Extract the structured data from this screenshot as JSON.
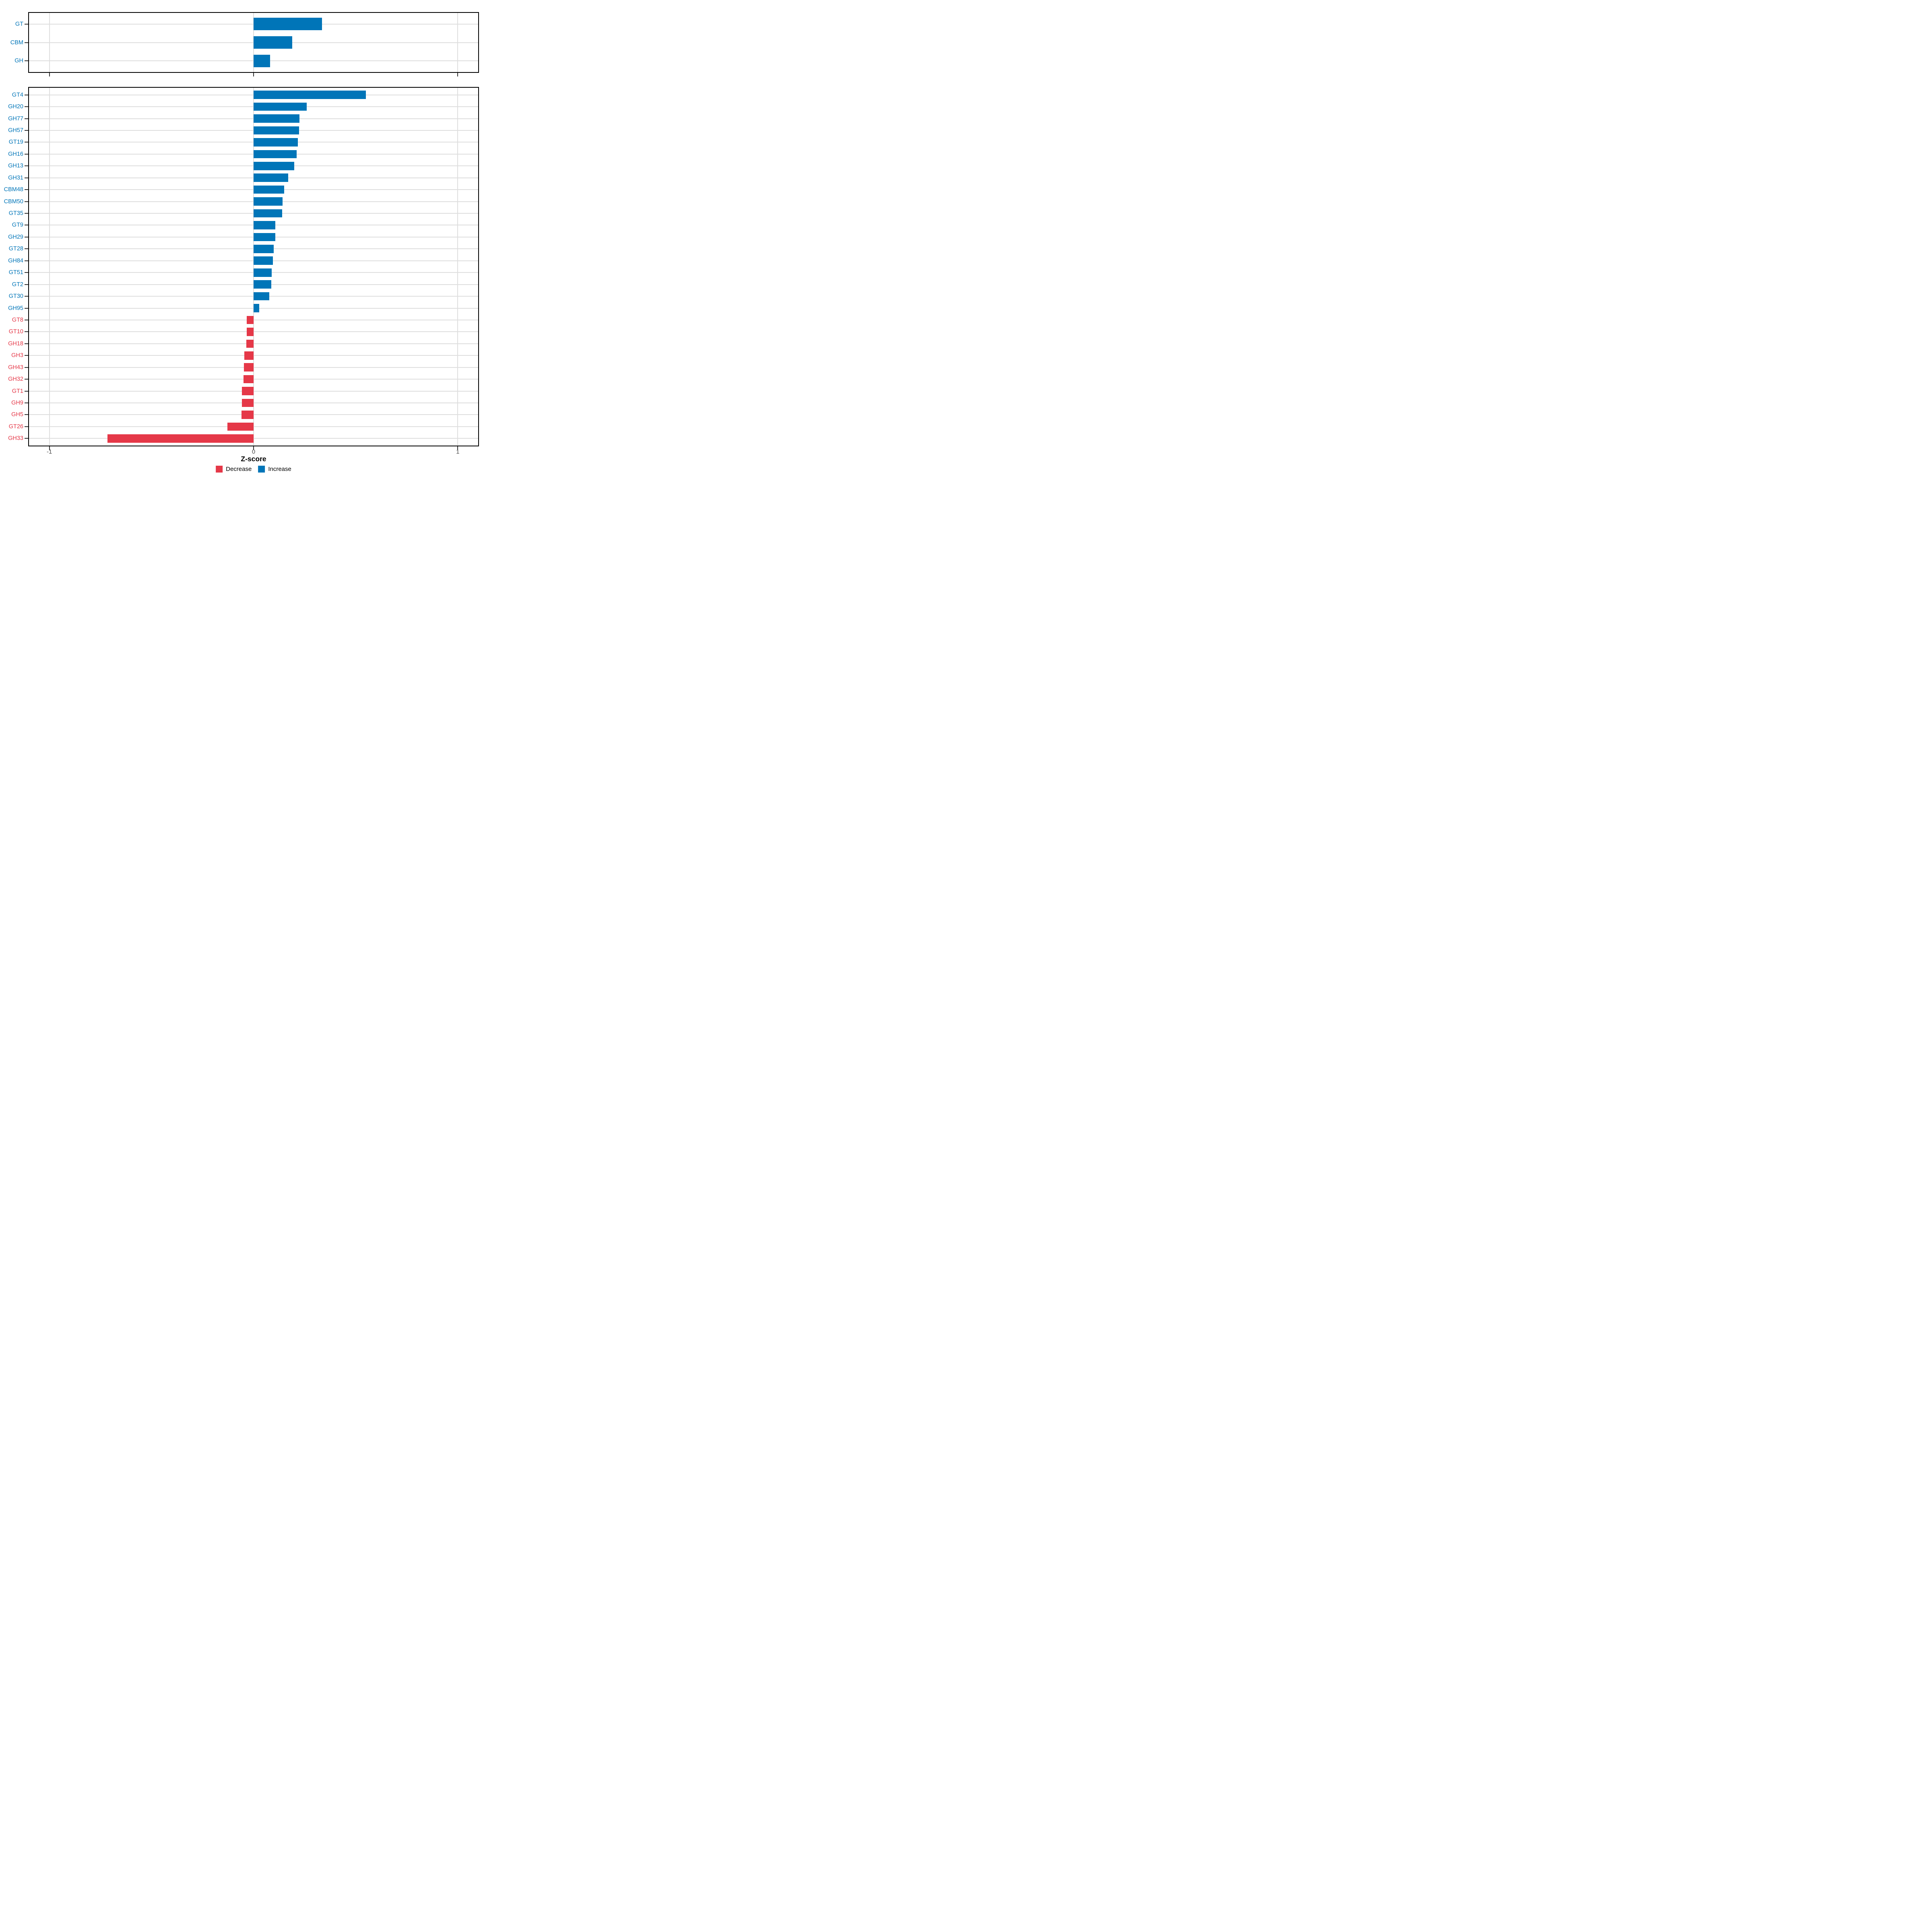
{
  "figure": {
    "xlabel": "Z-score",
    "background": "#FFFFFF",
    "colors": {
      "increase": "#0075B8",
      "decrease": "#E53848",
      "gridline": "#DEDEDE",
      "tick_mark": "#333333",
      "axis_text": "#4D4D4D",
      "panel_border": "#000000"
    },
    "x_ticks": [
      {
        "value": -1,
        "label": "-1"
      },
      {
        "value": 0,
        "label": "0"
      },
      {
        "value": 1,
        "label": "1"
      }
    ],
    "legend": [
      {
        "label": "Decrease",
        "color_key": "decrease"
      },
      {
        "label": "Increase",
        "color_key": "increase"
      }
    ]
  },
  "chart_data": [
    {
      "type": "bar",
      "orientation": "horizontal",
      "panel": "cazyme-class",
      "title": "",
      "xlabel": "Z-score",
      "xlim": [
        -1.1,
        1.1
      ],
      "grid": true,
      "legend_position": "bottom",
      "categories": [
        "GT",
        "CBM",
        "GH"
      ],
      "values": [
        0.335,
        0.19,
        0.08
      ],
      "groups": [
        "Increase",
        "Increase",
        "Increase"
      ]
    },
    {
      "type": "bar",
      "orientation": "horizontal",
      "panel": "cazyme-family",
      "title": "",
      "xlabel": "Z-score",
      "xlim": [
        -1.1,
        1.1
      ],
      "grid": true,
      "legend_position": "bottom",
      "categories": [
        "GT4",
        "GH20",
        "GH77",
        "GH57",
        "GT19",
        "GH16",
        "GH13",
        "GH31",
        "CBM48",
        "CBM50",
        "GT35",
        "GT9",
        "GH29",
        "GT28",
        "GH84",
        "GT51",
        "GT2",
        "GT30",
        "GH95",
        "GT8",
        "GT10",
        "GH18",
        "GH3",
        "GH43",
        "GH32",
        "GT1",
        "GH9",
        "GH5",
        "GT26",
        "GH33"
      ],
      "values": [
        0.55,
        0.26,
        0.225,
        0.223,
        0.217,
        0.21,
        0.2,
        0.17,
        0.15,
        0.141,
        0.14,
        0.107,
        0.106,
        0.099,
        0.095,
        0.089,
        0.087,
        0.077,
        0.027,
        -0.033,
        -0.034,
        -0.035,
        -0.045,
        -0.048,
        -0.049,
        -0.057,
        -0.058,
        -0.059,
        -0.128,
        -0.716
      ],
      "groups": [
        "Increase",
        "Increase",
        "Increase",
        "Increase",
        "Increase",
        "Increase",
        "Increase",
        "Increase",
        "Increase",
        "Increase",
        "Increase",
        "Increase",
        "Increase",
        "Increase",
        "Increase",
        "Increase",
        "Increase",
        "Increase",
        "Increase",
        "Decrease",
        "Decrease",
        "Decrease",
        "Decrease",
        "Decrease",
        "Decrease",
        "Decrease",
        "Decrease",
        "Decrease",
        "Decrease",
        "Decrease"
      ]
    }
  ]
}
